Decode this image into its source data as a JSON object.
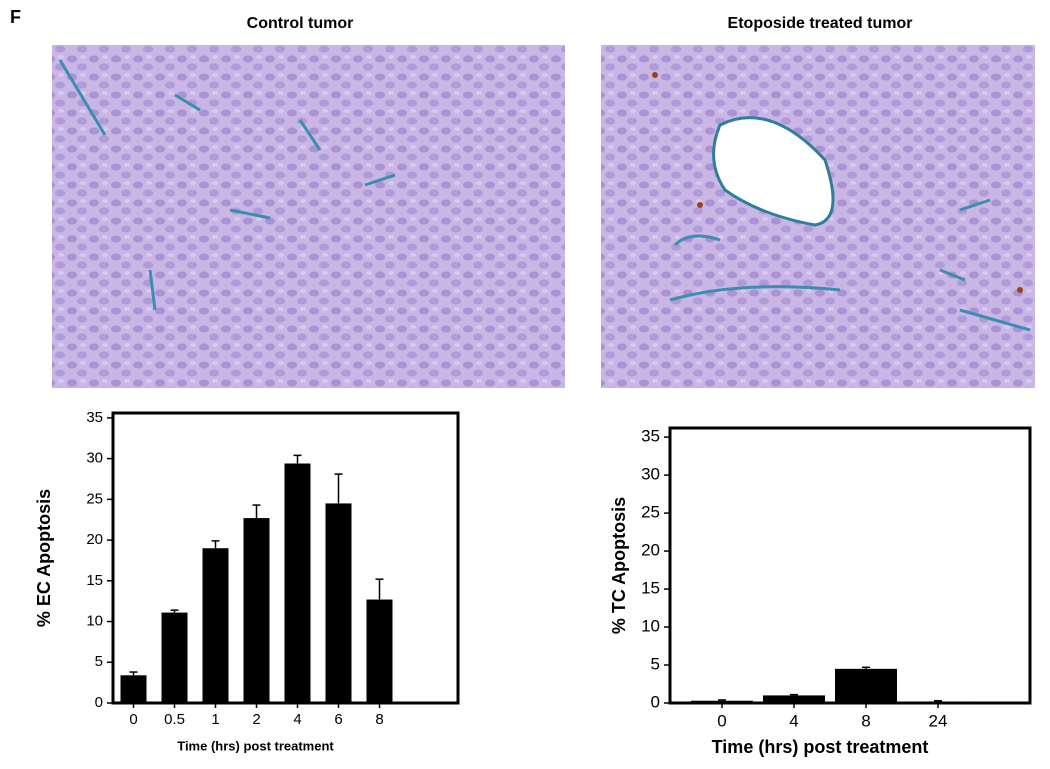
{
  "panel_label": "F",
  "images": [
    {
      "title": "Control tumor"
    },
    {
      "title": "Etoposide treated tumor"
    }
  ],
  "chart_data": [
    {
      "type": "bar",
      "categories": [
        "0",
        "0.5",
        "1",
        "2",
        "4",
        "6",
        "8"
      ],
      "values": [
        3.4,
        11.1,
        19,
        22.7,
        29.4,
        24.5,
        12.7
      ],
      "errors": [
        0.4,
        0.3,
        0.9,
        1.6,
        1.0,
        3.6,
        2.5
      ],
      "color": "#000000",
      "ylim": [
        0,
        35.6
      ],
      "yticks": [
        0,
        5,
        10,
        15,
        20,
        25,
        30,
        35
      ],
      "ylabel": "% EC Apoptosis",
      "xlabel": "Time (hrs) post treatment"
    },
    {
      "type": "bar",
      "categories": [
        "0",
        "4",
        "8",
        "24"
      ],
      "values": [
        0.3,
        1.0,
        4.5,
        0.2
      ],
      "errors": [
        0.1,
        0.1,
        0.2,
        0.1
      ],
      "color": "#000000",
      "ylim": [
        0,
        36.2
      ],
      "yticks": [
        0,
        5,
        10,
        15,
        20,
        25,
        30,
        35
      ],
      "ylabel": "% TC Apoptosis",
      "xlabel": "Time (hrs) post treatment"
    }
  ]
}
